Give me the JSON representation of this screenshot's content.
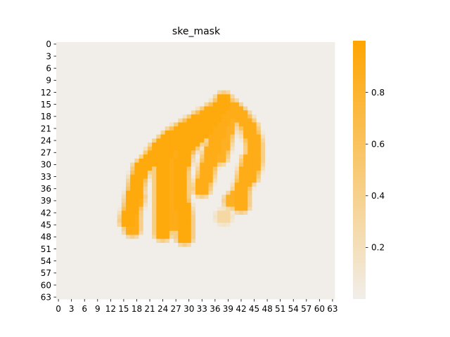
{
  "chart_data": {
    "type": "heatmap",
    "title": "ske_mask",
    "xlabel": "",
    "ylabel": "",
    "grid": 64,
    "x_ticks": [
      "0",
      "3",
      "6",
      "9",
      "12",
      "15",
      "18",
      "21",
      "24",
      "27",
      "30",
      "33",
      "36",
      "39",
      "42",
      "45",
      "48",
      "51",
      "54",
      "57",
      "60",
      "63"
    ],
    "y_ticks": [
      "0",
      "3",
      "6",
      "9",
      "12",
      "15",
      "18",
      "21",
      "24",
      "27",
      "30",
      "33",
      "36",
      "39",
      "42",
      "45",
      "48",
      "51",
      "54",
      "57",
      "60",
      "63"
    ],
    "colorbar": {
      "ticks": [
        "0.2",
        "0.4",
        "0.6",
        "0.8"
      ],
      "tick_values": [
        0.2,
        0.4,
        0.6,
        0.8
      ],
      "range": [
        0.0,
        1.0
      ],
      "low_color": "#f1eeea",
      "high_color": "#ffa500"
    },
    "strokes": [
      {
        "points": [
          [
            16,
            44
          ],
          [
            17,
            40
          ],
          [
            18,
            35
          ],
          [
            19,
            31
          ],
          [
            21,
            29
          ],
          [
            23,
            26
          ],
          [
            26,
            23
          ],
          [
            29,
            21
          ],
          [
            32,
            19
          ],
          [
            35,
            17
          ],
          [
            38,
            15
          ]
        ],
        "value": 0.95
      },
      {
        "points": [
          [
            17,
            46
          ],
          [
            17,
            42
          ],
          [
            18,
            38
          ]
        ],
        "value": 0.9
      },
      {
        "points": [
          [
            24,
            47
          ],
          [
            24,
            42
          ],
          [
            24,
            36
          ],
          [
            24,
            30
          ],
          [
            25,
            26
          ],
          [
            28,
            23
          ],
          [
            31,
            21
          ],
          [
            34,
            19
          ],
          [
            37,
            16
          ],
          [
            38,
            14
          ]
        ],
        "value": 0.95
      },
      {
        "points": [
          [
            26,
            45
          ],
          [
            26,
            40
          ],
          [
            26,
            34
          ],
          [
            27,
            29
          ],
          [
            29,
            26
          ],
          [
            31,
            23
          ],
          [
            34,
            21
          ]
        ],
        "value": 0.9
      },
      {
        "points": [
          [
            29,
            48
          ],
          [
            29,
            43
          ],
          [
            28,
            38
          ],
          [
            28,
            32
          ],
          [
            29,
            27
          ],
          [
            31,
            24
          ],
          [
            34,
            21
          ],
          [
            36,
            18
          ]
        ],
        "value": 0.95
      },
      {
        "points": [
          [
            33,
            36
          ],
          [
            34,
            32
          ],
          [
            35,
            28
          ],
          [
            36,
            25
          ],
          [
            37,
            21
          ],
          [
            38,
            18
          ]
        ],
        "value": 0.9
      },
      {
        "points": [
          [
            39,
            20
          ],
          [
            38,
            24
          ],
          [
            37,
            28
          ]
        ],
        "value": 0.85
      },
      {
        "points": [
          [
            38,
            15
          ],
          [
            40,
            16
          ],
          [
            42,
            18
          ],
          [
            44,
            21
          ],
          [
            45,
            25
          ],
          [
            45,
            29
          ],
          [
            44,
            33
          ]
        ],
        "value": 0.9
      },
      {
        "points": [
          [
            44,
            29
          ],
          [
            43,
            33
          ],
          [
            42,
            37
          ],
          [
            42,
            40
          ]
        ],
        "value": 0.9
      },
      {
        "points": [
          [
            40,
            39
          ],
          [
            42,
            37
          ]
        ],
        "value": 0.85
      },
      {
        "points": [
          [
            38,
            43
          ]
        ],
        "value": 0.3
      }
    ]
  }
}
